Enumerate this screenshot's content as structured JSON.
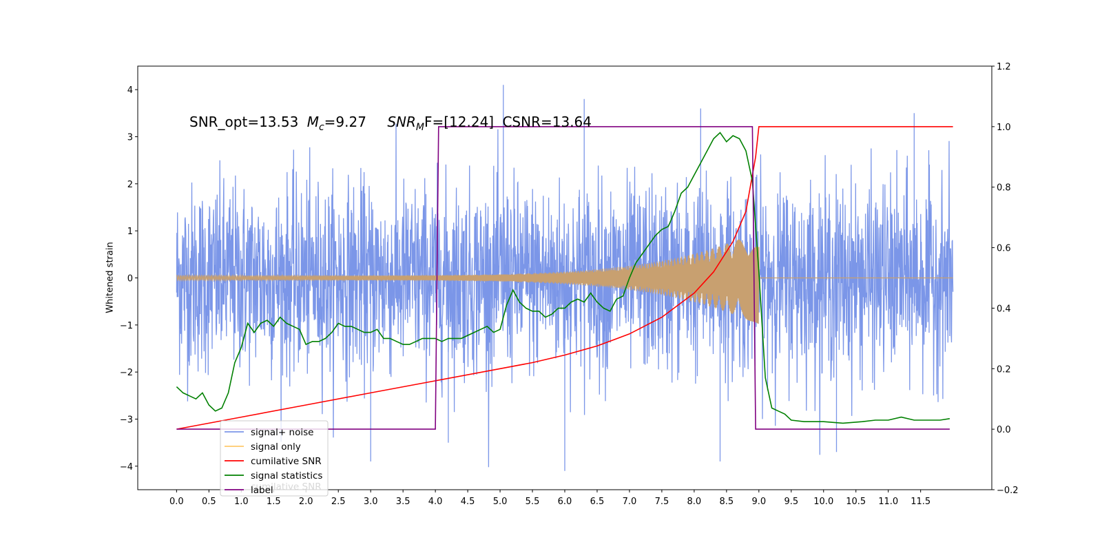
{
  "chart_data": {
    "type": "line",
    "title_parts": {
      "snr_opt": "SNR_opt=13.53",
      "mc_sym": "M",
      "mc_sub": "c",
      "mc_val": "=9.27",
      "snrm_sym": "SNR",
      "snrm_sub": "M",
      "snrm_val": "F=[12.24]",
      "csnr": "CSNR=13.64"
    },
    "ylabel_left": "Whitened strain",
    "xlim": [
      -0.6,
      12.6
    ],
    "ylim_left": [
      -4.5,
      4.5
    ],
    "ylim_right": [
      -0.2,
      1.2
    ],
    "x_ticks": [
      "0.0",
      "0.5",
      "1.0",
      "1.5",
      "2.0",
      "2.5",
      "3.0",
      "3.5",
      "4.0",
      "4.5",
      "5.0",
      "5.5",
      "6.0",
      "6.5",
      "7.0",
      "7.5",
      "8.0",
      "8.5",
      "9.0",
      "9.5",
      "10.0",
      "10.5",
      "11.0",
      "11.5"
    ],
    "y_ticks_left": [
      -4,
      -3,
      -2,
      -1,
      0,
      1,
      2,
      3,
      4
    ],
    "y_ticks_right": [
      "−0.2",
      "0.0",
      "0.2",
      "0.4",
      "0.6",
      "0.8",
      "1.0",
      "1.2"
    ],
    "y_ticks_right_values": [
      -0.2,
      0.0,
      0.2,
      0.4,
      0.6,
      0.8,
      1.0,
      1.2
    ],
    "legend": {
      "placement": "lower-left",
      "entries": [
        {
          "label": "signal+ noise",
          "color": "#7b96e8"
        },
        {
          "label": "signal only",
          "color": "#ffc96b"
        },
        {
          "label": "cumilative SNR",
          "color": "#ff0000"
        },
        {
          "label": "signal statistics",
          "color": "#008000"
        },
        {
          "label": "label",
          "color": "#800080"
        }
      ],
      "ghost_label": "cumilative SNR"
    },
    "series": [
      {
        "name": "signal+ noise",
        "axis": "left",
        "color": "#7b96e8",
        "x_range": [
          0.0,
          12.0
        ],
        "typical_amplitude": 1.0,
        "peak_values": [
          4.1,
          3.8,
          3.6,
          3.5,
          -3.9,
          -4.1,
          -3.5,
          -3.9,
          -3.7
        ]
      },
      {
        "name": "signal only",
        "axis": "left",
        "color": "#c8a070",
        "x_range": [
          0.0,
          12.0
        ],
        "chirp_start": 0.0,
        "chirp_end": 9.0,
        "amplitude_start": 0.05,
        "amplitude_end": 1.0
      },
      {
        "name": "cumilative SNR",
        "axis": "right",
        "color": "#ff0000",
        "x": [
          0.0,
          1.0,
          2.0,
          3.0,
          4.0,
          5.0,
          5.5,
          6.0,
          6.5,
          7.0,
          7.5,
          8.0,
          8.3,
          8.6,
          8.8,
          8.95,
          9.0,
          12.0
        ],
        "y": [
          0.0,
          0.04,
          0.08,
          0.12,
          0.16,
          0.2,
          0.22,
          0.245,
          0.275,
          0.315,
          0.37,
          0.45,
          0.52,
          0.62,
          0.72,
          0.9,
          1.0,
          1.0
        ]
      },
      {
        "name": "signal statistics",
        "axis": "right",
        "color": "#008000",
        "x": [
          0.0,
          0.1,
          0.2,
          0.3,
          0.4,
          0.5,
          0.6,
          0.7,
          0.8,
          0.9,
          1.0,
          1.1,
          1.2,
          1.3,
          1.4,
          1.5,
          1.6,
          1.7,
          1.8,
          1.9,
          2.0,
          2.1,
          2.2,
          2.3,
          2.4,
          2.5,
          2.6,
          2.7,
          2.8,
          2.9,
          3.0,
          3.1,
          3.2,
          3.3,
          3.4,
          3.5,
          3.6,
          3.7,
          3.8,
          3.9,
          4.0,
          4.1,
          4.2,
          4.3,
          4.4,
          4.5,
          4.6,
          4.7,
          4.8,
          4.9,
          5.0,
          5.1,
          5.2,
          5.3,
          5.4,
          5.5,
          5.6,
          5.7,
          5.8,
          5.9,
          6.0,
          6.1,
          6.2,
          6.3,
          6.4,
          6.5,
          6.6,
          6.7,
          6.8,
          6.9,
          7.0,
          7.1,
          7.2,
          7.3,
          7.4,
          7.5,
          7.6,
          7.7,
          7.8,
          7.9,
          8.0,
          8.1,
          8.2,
          8.3,
          8.4,
          8.5,
          8.6,
          8.7,
          8.8,
          8.9,
          9.0,
          9.1,
          9.2,
          9.3,
          9.4,
          9.5,
          9.7,
          10.0,
          10.3,
          10.6,
          10.8,
          11.0,
          11.2,
          11.4,
          11.6,
          11.8,
          11.95
        ],
        "y": [
          0.14,
          0.12,
          0.11,
          0.1,
          0.12,
          0.08,
          0.06,
          0.07,
          0.12,
          0.22,
          0.27,
          0.35,
          0.32,
          0.35,
          0.36,
          0.34,
          0.37,
          0.35,
          0.34,
          0.33,
          0.28,
          0.29,
          0.29,
          0.3,
          0.32,
          0.35,
          0.34,
          0.34,
          0.33,
          0.32,
          0.32,
          0.33,
          0.3,
          0.3,
          0.29,
          0.28,
          0.28,
          0.29,
          0.3,
          0.3,
          0.3,
          0.29,
          0.3,
          0.3,
          0.3,
          0.31,
          0.32,
          0.33,
          0.34,
          0.32,
          0.33,
          0.41,
          0.46,
          0.42,
          0.4,
          0.39,
          0.39,
          0.37,
          0.38,
          0.4,
          0.4,
          0.42,
          0.43,
          0.42,
          0.45,
          0.42,
          0.4,
          0.39,
          0.43,
          0.44,
          0.5,
          0.55,
          0.58,
          0.61,
          0.64,
          0.66,
          0.67,
          0.72,
          0.78,
          0.8,
          0.84,
          0.88,
          0.92,
          0.96,
          0.98,
          0.95,
          0.97,
          0.96,
          0.92,
          0.82,
          0.52,
          0.17,
          0.07,
          0.06,
          0.05,
          0.03,
          0.025,
          0.025,
          0.02,
          0.025,
          0.03,
          0.03,
          0.04,
          0.03,
          0.03,
          0.03,
          0.035
        ]
      },
      {
        "name": "label",
        "axis": "right",
        "color": "#800080",
        "x": [
          0.0,
          4.0,
          4.05,
          8.9,
          8.95,
          11.95
        ],
        "y": [
          0.0,
          0.0,
          1.0,
          1.0,
          0.0,
          0.0
        ]
      }
    ],
    "grid": false
  }
}
